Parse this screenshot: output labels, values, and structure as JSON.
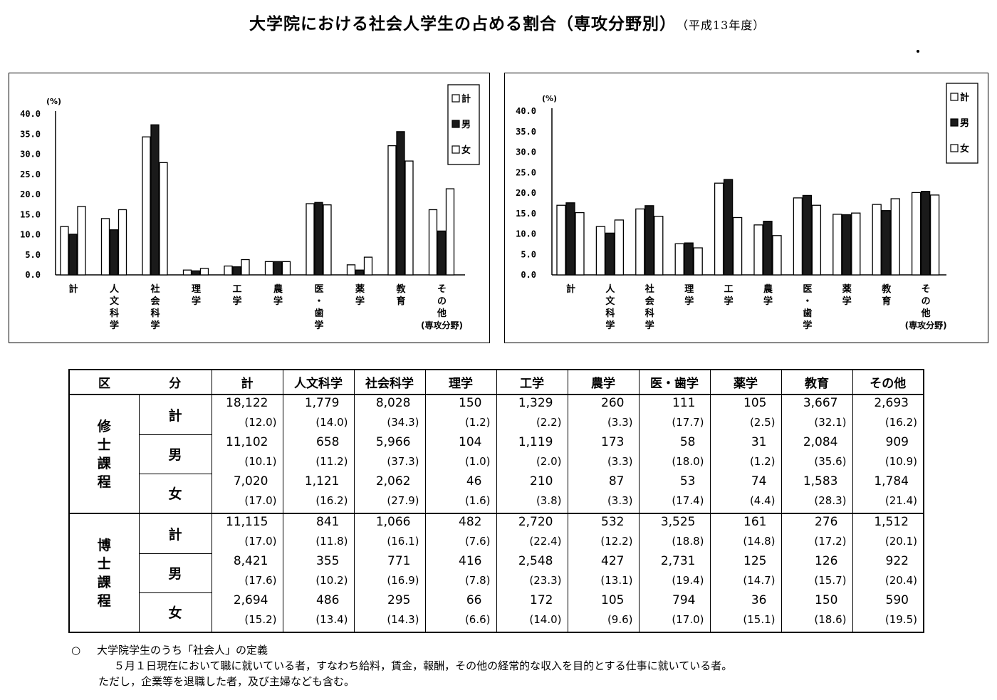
{
  "page": {
    "title": "大学院における社会人学生の占める割合（専攻分野別）",
    "year_note": "（平成13年度）"
  },
  "legend": {
    "total": "計",
    "male": "男",
    "female": "女"
  },
  "colors": {
    "total": "#ffffff",
    "male": "#1a1a1a",
    "female": "#ffffff",
    "stroke": "#000000"
  },
  "chart_data": [
    {
      "type": "bar",
      "unit_label": "(%)",
      "ylim": [
        0,
        40
      ],
      "yticks": [
        "0.0",
        "5.0",
        "10.0",
        "15.0",
        "20.0",
        "25.0",
        "30.0",
        "35.0",
        "40.0"
      ],
      "categories": [
        "計",
        "人文科学",
        "社会科学",
        "理学",
        "工学",
        "農学",
        "医・歯学",
        "薬学",
        "教育",
        "その他"
      ],
      "extra_label": "(専攻分野)",
      "legend_position": "top-right",
      "series": [
        {
          "name": "計",
          "values": [
            12.0,
            14.0,
            34.3,
            1.2,
            2.2,
            3.3,
            17.7,
            2.5,
            32.1,
            16.2
          ]
        },
        {
          "name": "男",
          "values": [
            10.1,
            11.2,
            37.3,
            1.0,
            2.0,
            3.3,
            18.0,
            1.2,
            35.6,
            10.9
          ]
        },
        {
          "name": "女",
          "values": [
            17.0,
            16.2,
            27.9,
            1.6,
            3.8,
            3.3,
            17.4,
            4.4,
            28.3,
            21.4
          ]
        }
      ]
    },
    {
      "type": "bar",
      "unit_label": "(%)",
      "ylim": [
        0,
        40
      ],
      "yticks": [
        "0.0",
        "5.0",
        "10.0",
        "15.0",
        "20.0",
        "25.0",
        "30.0",
        "35.0",
        "40.0"
      ],
      "categories": [
        "計",
        "人文科学",
        "社会科学",
        "理学",
        "工学",
        "農学",
        "医・歯学",
        "薬学",
        "教育",
        "その他"
      ],
      "extra_label": "(専攻分野)",
      "legend_position": "top-right",
      "series": [
        {
          "name": "計",
          "values": [
            17.0,
            11.8,
            16.1,
            7.6,
            22.4,
            12.2,
            18.8,
            14.8,
            17.2,
            20.1
          ]
        },
        {
          "name": "男",
          "values": [
            17.6,
            10.2,
            16.9,
            7.8,
            23.3,
            13.1,
            19.4,
            14.7,
            15.7,
            20.4
          ]
        },
        {
          "name": "女",
          "values": [
            15.2,
            13.4,
            14.3,
            6.6,
            14.0,
            9.6,
            17.0,
            15.1,
            18.6,
            19.5
          ]
        }
      ]
    }
  ],
  "table": {
    "header_left": "区",
    "header_right": "分",
    "columns": [
      "計",
      "人文科学",
      "社会科学",
      "理学",
      "工学",
      "農学",
      "医・歯学",
      "薬学",
      "教育",
      "その他"
    ],
    "groups": [
      {
        "label": "修士課程",
        "rows": [
          {
            "sex": "計",
            "nums": [
              "18,122",
              "1,779",
              "8,028",
              "150",
              "1,329",
              "260",
              "111",
              "105",
              "3,667",
              "2,693"
            ],
            "pcts": [
              "(12.0)",
              "(14.0)",
              "(34.3)",
              "(1.2)",
              "(2.2)",
              "(3.3)",
              "(17.7)",
              "(2.5)",
              "(32.1)",
              "(16.2)"
            ]
          },
          {
            "sex": "男",
            "nums": [
              "11,102",
              "658",
              "5,966",
              "104",
              "1,119",
              "173",
              "58",
              "31",
              "2,084",
              "909"
            ],
            "pcts": [
              "(10.1)",
              "(11.2)",
              "(37.3)",
              "(1.0)",
              "(2.0)",
              "(3.3)",
              "(18.0)",
              "(1.2)",
              "(35.6)",
              "(10.9)"
            ]
          },
          {
            "sex": "女",
            "nums": [
              "7,020",
              "1,121",
              "2,062",
              "46",
              "210",
              "87",
              "53",
              "74",
              "1,583",
              "1,784"
            ],
            "pcts": [
              "(17.0)",
              "(16.2)",
              "(27.9)",
              "(1.6)",
              "(3.8)",
              "(3.3)",
              "(17.4)",
              "(4.4)",
              "(28.3)",
              "(21.4)"
            ]
          }
        ]
      },
      {
        "label": "博士課程",
        "rows": [
          {
            "sex": "計",
            "nums": [
              "11,115",
              "841",
              "1,066",
              "482",
              "2,720",
              "532",
              "3,525",
              "161",
              "276",
              "1,512"
            ],
            "pcts": [
              "(17.0)",
              "(11.8)",
              "(16.1)",
              "(7.6)",
              "(22.4)",
              "(12.2)",
              "(18.8)",
              "(14.8)",
              "(17.2)",
              "(20.1)"
            ]
          },
          {
            "sex": "男",
            "nums": [
              "8,421",
              "355",
              "771",
              "416",
              "2,548",
              "427",
              "2,731",
              "125",
              "126",
              "922"
            ],
            "pcts": [
              "(17.6)",
              "(10.2)",
              "(16.9)",
              "(7.8)",
              "(23.3)",
              "(13.1)",
              "(19.4)",
              "(14.7)",
              "(15.7)",
              "(20.4)"
            ]
          },
          {
            "sex": "女",
            "nums": [
              "2,694",
              "486",
              "295",
              "66",
              "172",
              "105",
              "794",
              "36",
              "150",
              "590"
            ],
            "pcts": [
              "(15.2)",
              "(13.4)",
              "(14.3)",
              "(6.6)",
              "(14.0)",
              "(9.6)",
              "(17.0)",
              "(15.1)",
              "(18.6)",
              "(19.5)"
            ]
          }
        ]
      }
    ]
  },
  "footnote": {
    "bullet": "○",
    "heading": "大学院学生のうち「社会人」の定義",
    "line1": "５月１日現在において職に就いている者，すなわち給料，賃金，報酬，その他の経常的な収入を目的とする仕事に就いている者。",
    "line2": "ただし，企業等を退職した者，及び主婦なども含む。"
  }
}
